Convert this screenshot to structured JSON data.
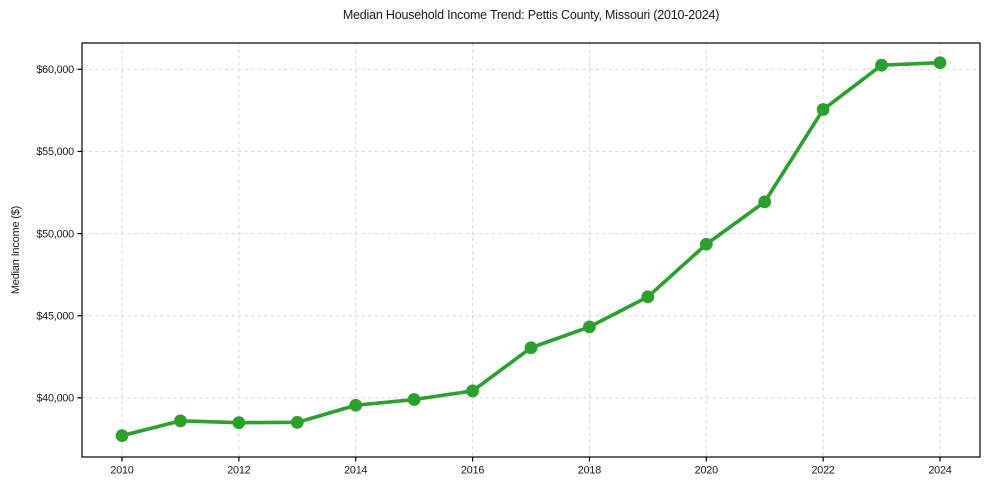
{
  "chart_data": {
    "type": "line",
    "title": "Median Household Income Trend: Pettis County, Missouri (2010-2024)",
    "xlabel": "",
    "ylabel": "Median Income ($)",
    "series": [
      {
        "name": "Median Household Income",
        "x": [
          2010,
          2011,
          2012,
          2013,
          2014,
          2015,
          2016,
          2017,
          2018,
          2019,
          2020,
          2021,
          2022,
          2023,
          2024
        ],
        "values": [
          37700,
          38600,
          38490,
          38510,
          39550,
          39900,
          40420,
          43050,
          44320,
          46150,
          49350,
          51930,
          57550,
          60250,
          60400
        ]
      }
    ],
    "xlim": [
      2009.315,
      2024.685
    ],
    "ylim": [
      36400,
      61600
    ],
    "x_ticks": [
      2010,
      2012,
      2014,
      2016,
      2018,
      2020,
      2022,
      2024
    ],
    "x_tick_labels": [
      "2010",
      "2012",
      "2014",
      "2016",
      "2018",
      "2020",
      "2022",
      "2024"
    ],
    "y_ticks": [
      40000,
      45000,
      50000,
      55000,
      60000
    ],
    "y_tick_labels": [
      "$40,000",
      "$45,000",
      "$50,000",
      "$55,000",
      "$60,000"
    ],
    "grid": true,
    "legend": "none",
    "colors": {
      "line": "#2ca02c",
      "marker": "#2ca02c",
      "grid": "#d7d7d7",
      "spine": "#000000",
      "text": "#1a1a1a",
      "background": "#ffffff"
    }
  }
}
